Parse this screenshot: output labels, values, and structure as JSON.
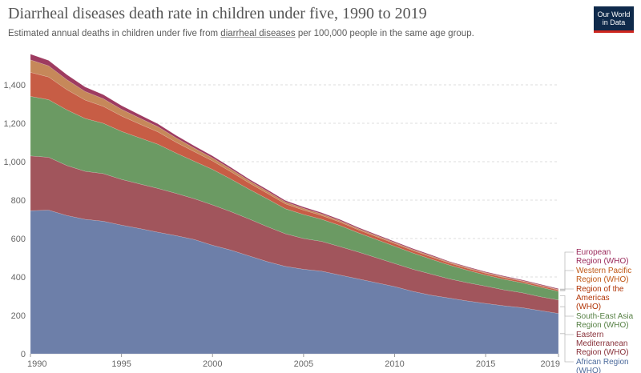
{
  "header": {
    "title": "Diarrheal diseases death rate in children under five, 1990 to 2019",
    "subtitle_before": "Estimated annual deaths in children under five from ",
    "subtitle_link": "diarrheal diseases",
    "subtitle_after": " per 100,000 people in the same age group.",
    "logo_line1": "Our World",
    "logo_line2": "in Data"
  },
  "chart_data": {
    "type": "area",
    "stacked": true,
    "x": [
      1990,
      1991,
      1992,
      1993,
      1994,
      1995,
      1996,
      1997,
      1998,
      1999,
      2000,
      2001,
      2002,
      2003,
      2004,
      2005,
      2006,
      2007,
      2008,
      2009,
      2010,
      2011,
      2012,
      2013,
      2014,
      2015,
      2016,
      2017,
      2018,
      2019
    ],
    "ylim": [
      0,
      1600
    ],
    "y_ticks": [
      0,
      200,
      400,
      600,
      800,
      1000,
      1200,
      1400
    ],
    "y_tick_labels": [
      "0",
      "200",
      "400",
      "600",
      "800",
      "1,000",
      "1,200",
      "1,400"
    ],
    "x_ticks": [
      1990,
      1995,
      2000,
      2005,
      2010,
      2015,
      2019
    ],
    "x_tick_labels": [
      "1990",
      "1995",
      "2000",
      "2005",
      "2010",
      "2015",
      "2019"
    ],
    "grid": "horizontal dashed",
    "legend_position": "right",
    "series": [
      {
        "name": "African Region (WHO)",
        "color": "#6d7fa9",
        "label_color": "#4c6a9c",
        "values": [
          745,
          748,
          720,
          700,
          690,
          670,
          652,
          633,
          615,
          595,
          565,
          540,
          510,
          480,
          455,
          440,
          430,
          410,
          390,
          370,
          350,
          325,
          305,
          290,
          275,
          262,
          250,
          240,
          225,
          210
        ]
      },
      {
        "name": "Eastern Mediterranean Region (WHO)",
        "color": "#a1555c",
        "label_color": "#883039",
        "values": [
          285,
          275,
          260,
          250,
          248,
          238,
          232,
          228,
          220,
          212,
          210,
          200,
          192,
          182,
          170,
          160,
          155,
          148,
          140,
          130,
          120,
          115,
          110,
          100,
          95,
          90,
          83,
          78,
          72,
          70
        ]
      },
      {
        "name": "South-East Asia Region (WHO)",
        "color": "#6b9a63",
        "label_color": "#578145",
        "values": [
          310,
          300,
          290,
          275,
          262,
          250,
          240,
          230,
          210,
          195,
          185,
          170,
          155,
          145,
          130,
          125,
          115,
          110,
          100,
          95,
          90,
          85,
          78,
          72,
          65,
          58,
          55,
          52,
          50,
          45
        ]
      },
      {
        "name": "Region of the Americas (WHO)",
        "color": "#c75d45",
        "label_color": "#b13507",
        "values": [
          125,
          118,
          105,
          96,
          88,
          80,
          72,
          64,
          56,
          50,
          44,
          38,
          33,
          29,
          26,
          23,
          20,
          18,
          16,
          15,
          14,
          13,
          12,
          11,
          10,
          9,
          9,
          8,
          8,
          7
        ]
      },
      {
        "name": "Western Pacific Region (WHO)",
        "color": "#c6885a",
        "label_color": "#c05917",
        "values": [
          65,
          58,
          52,
          45,
          40,
          35,
          31,
          27,
          23,
          19,
          16,
          14,
          12,
          11,
          10,
          9,
          8,
          7,
          6,
          6,
          5,
          5,
          5,
          4,
          4,
          4,
          4,
          3,
          3,
          3
        ]
      },
      {
        "name": "European Region (WHO)",
        "color": "#9e3b60",
        "label_color": "#9a2a5b",
        "values": [
          30,
          28,
          26,
          23,
          21,
          19,
          17,
          15,
          13,
          11,
          10,
          9,
          8,
          8,
          7,
          7,
          6,
          6,
          6,
          5,
          5,
          5,
          5,
          4,
          4,
          4,
          4,
          4,
          4,
          4
        ]
      }
    ]
  }
}
